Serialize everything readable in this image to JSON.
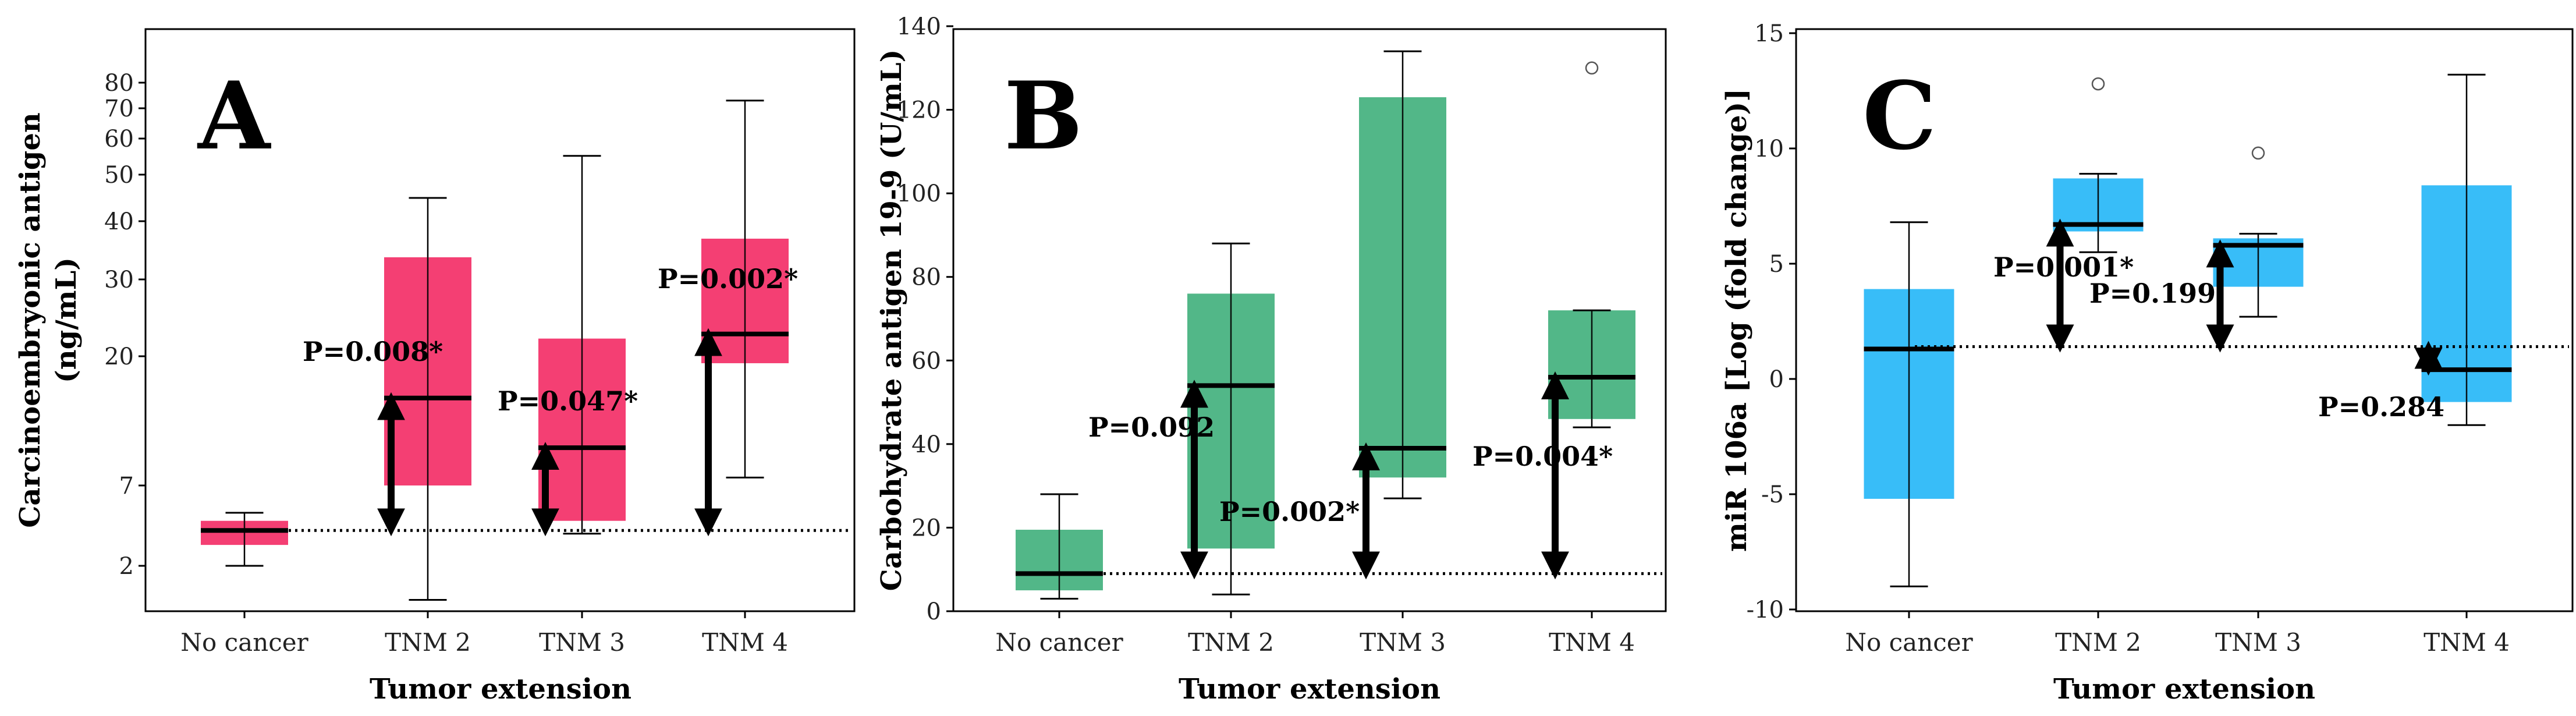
{
  "chart_data": [
    {
      "panel": "A",
      "type": "box",
      "color": "#F43F73",
      "ylabel_line1": "Carcinoembryonic antigen",
      "ylabel_line2": "(ng/mL)",
      "xlabel": "Tumor extension",
      "yscale": "nonlinear",
      "yticks": [
        2,
        7,
        20,
        30,
        40,
        50,
        60,
        70,
        80
      ],
      "categories": [
        "No cancer",
        "TNM 2",
        "TNM 3",
        "TNM 4"
      ],
      "boxes": [
        {
          "min": 2.0,
          "q1": 3.3,
          "median": 4.2,
          "q3": 4.8,
          "max": 5.3,
          "outliers": []
        },
        {
          "min": 0.5,
          "q1": 7.0,
          "median": 15.8,
          "q3": 33.8,
          "max": 45.0,
          "outliers": []
        },
        {
          "min": 4.0,
          "q1": 4.8,
          "median": 10.8,
          "q3": 22.3,
          "max": 55.2,
          "outliers": []
        },
        {
          "min": 7.8,
          "q1": 19.3,
          "median": 22.9,
          "q3": 37.0,
          "max": 73.0,
          "outliers": []
        }
      ],
      "reference_level": 4.2,
      "comparisons": [
        {
          "category": "TNM 2",
          "label": "P=0.008*"
        },
        {
          "category": "TNM 3",
          "label": "P=0.047*"
        },
        {
          "category": "TNM 4",
          "label": "P=0.002*"
        }
      ]
    },
    {
      "panel": "B",
      "type": "box",
      "color": "#52B788",
      "ylabel": "Carbohydrate antigen 19-9 (U/mL)",
      "xlabel": "Tumor extension",
      "ylim": [
        0,
        140
      ],
      "yticks": [
        0,
        20,
        40,
        60,
        80,
        100,
        120,
        140
      ],
      "categories": [
        "No cancer",
        "TNM 2",
        "TNM 3",
        "TNM 4"
      ],
      "boxes": [
        {
          "min": 3,
          "q1": 5,
          "median": 9,
          "q3": 19.5,
          "max": 28,
          "outliers": []
        },
        {
          "min": 4,
          "q1": 15,
          "median": 54,
          "q3": 76,
          "max": 88,
          "outliers": []
        },
        {
          "min": 27,
          "q1": 32,
          "median": 39,
          "q3": 123,
          "max": 134,
          "outliers": []
        },
        {
          "min": 44,
          "q1": 46,
          "median": 56,
          "q3": 72,
          "max": 72,
          "outliers": [
            130
          ]
        }
      ],
      "reference_level": 9,
      "comparisons": [
        {
          "category": "TNM 2",
          "label": "P=0.092"
        },
        {
          "category": "TNM 3",
          "label": "P=0.002*"
        },
        {
          "category": "TNM 4",
          "label": "P=0.004*"
        }
      ]
    },
    {
      "panel": "C",
      "type": "box",
      "color": "#38BDF8",
      "ylabel": "miR 106a [Log (fold change)]",
      "xlabel": "Tumor extension",
      "ylim": [
        -10,
        15
      ],
      "yticks": [
        -10,
        -5,
        0,
        5,
        10,
        15
      ],
      "categories": [
        "No cancer",
        "TNM 2",
        "TNM 3",
        "TNM 4"
      ],
      "boxes": [
        {
          "min": -9.0,
          "q1": -5.2,
          "median": 1.3,
          "q3": 3.9,
          "max": 6.8,
          "outliers": []
        },
        {
          "min": 5.5,
          "q1": 6.4,
          "median": 6.7,
          "q3": 8.7,
          "max": 8.9,
          "outliers": [
            12.8
          ]
        },
        {
          "min": 2.7,
          "q1": 4.0,
          "median": 5.8,
          "q3": 6.1,
          "max": 6.3,
          "outliers": [
            9.8
          ]
        },
        {
          "min": -2.0,
          "q1": -1.0,
          "median": 0.4,
          "q3": 8.4,
          "max": 13.2,
          "outliers": []
        }
      ],
      "reference_level": 1.4,
      "comparisons": [
        {
          "category": "TNM 2",
          "label": "P=0.001*"
        },
        {
          "category": "TNM 3",
          "label": "P=0.199"
        },
        {
          "category": "TNM 4",
          "label": "P=0.284"
        }
      ]
    }
  ]
}
